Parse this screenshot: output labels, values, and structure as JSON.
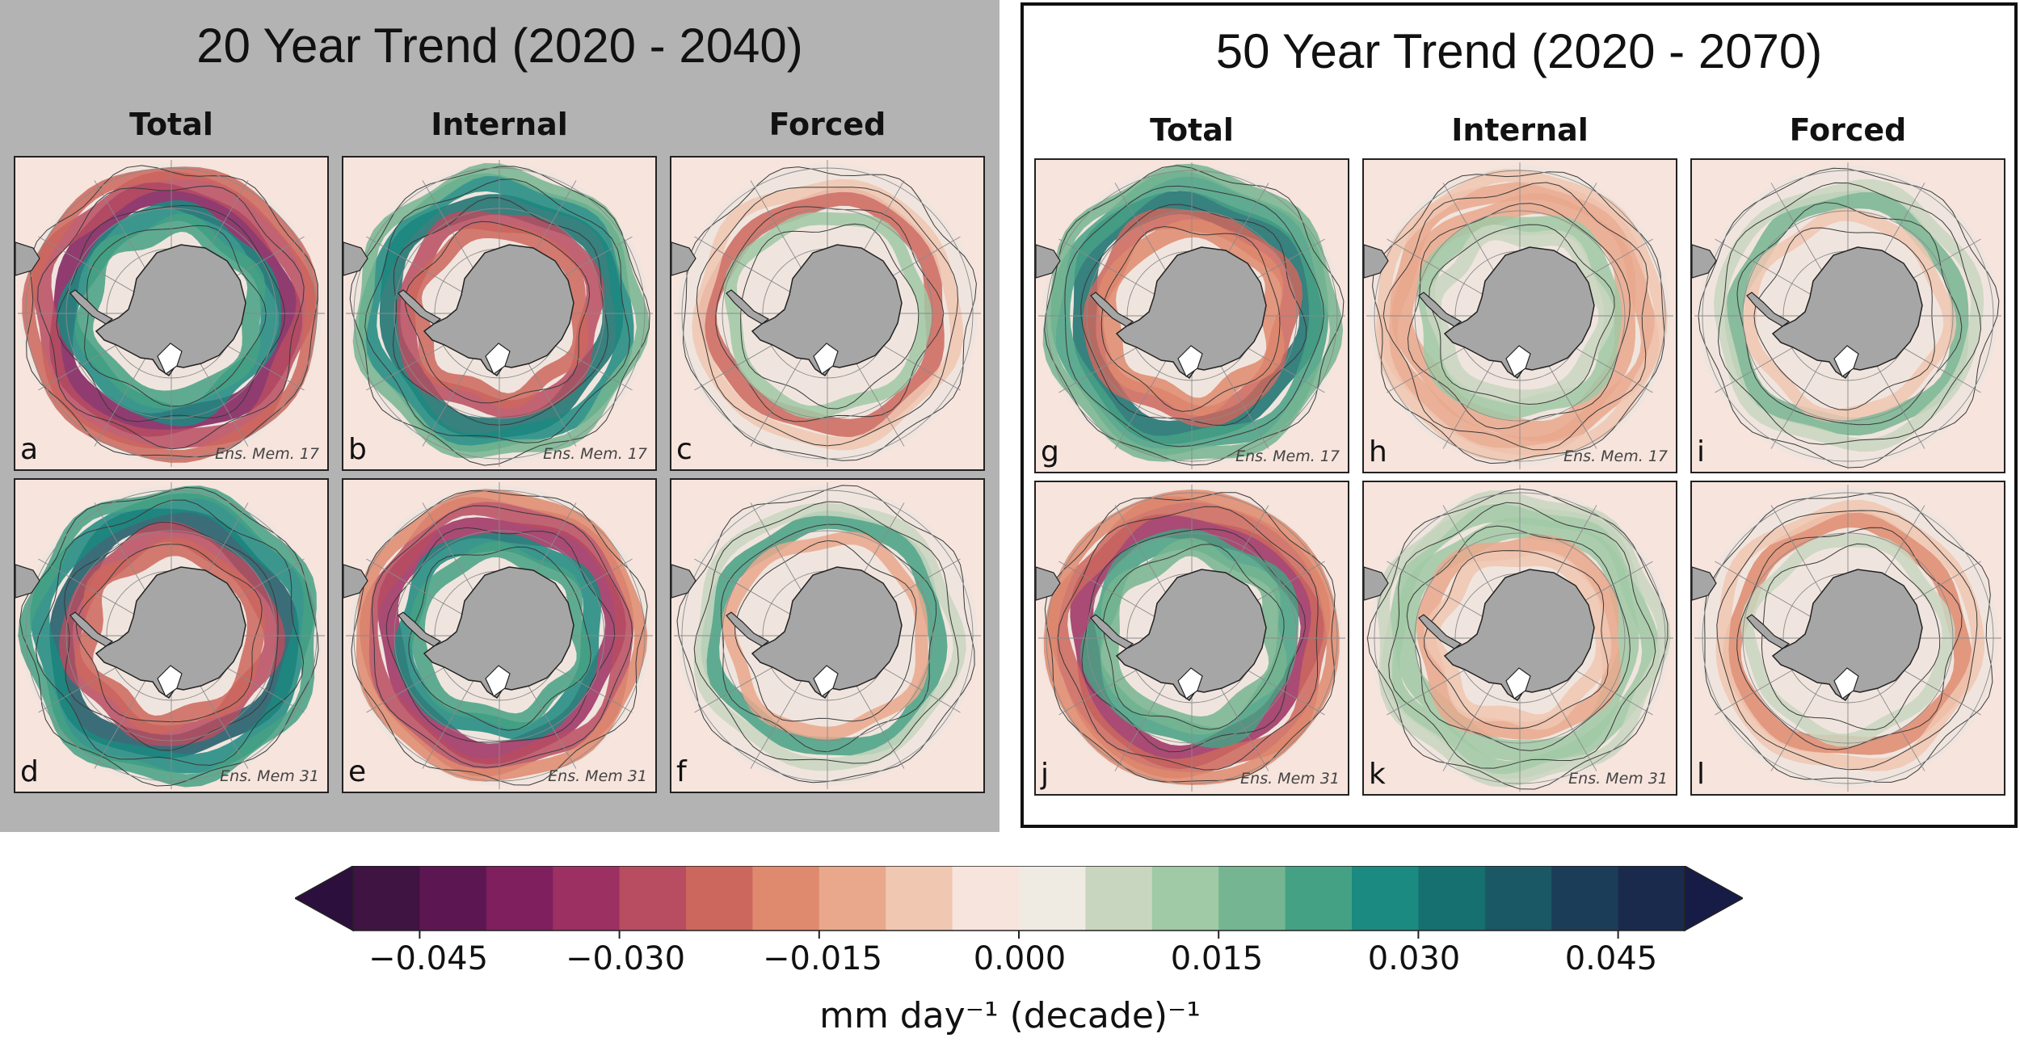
{
  "groups": [
    {
      "title": "20 Year Trend (2020 - 2040)",
      "columns": [
        "Total",
        "Internal",
        "Forced"
      ],
      "panels": [
        {
          "label": "a",
          "ens": "Ens. Mem. 17",
          "kind": "total"
        },
        {
          "label": "b",
          "ens": "Ens. Mem. 17",
          "kind": "internal"
        },
        {
          "label": "c",
          "ens": "",
          "kind": "forced"
        },
        {
          "label": "d",
          "ens": "Ens. Mem 31",
          "kind": "total"
        },
        {
          "label": "e",
          "ens": "Ens. Mem 31",
          "kind": "internal"
        },
        {
          "label": "f",
          "ens": "",
          "kind": "forced"
        }
      ]
    },
    {
      "title": "50 Year Trend (2020 - 2070)",
      "columns": [
        "Total",
        "Internal",
        "Forced"
      ],
      "panels": [
        {
          "label": "g",
          "ens": "Ens. Mem. 17",
          "kind": "total"
        },
        {
          "label": "h",
          "ens": "Ens. Mem. 17",
          "kind": "internal"
        },
        {
          "label": "i",
          "ens": "",
          "kind": "forced"
        },
        {
          "label": "j",
          "ens": "Ens. Mem 31",
          "kind": "total"
        },
        {
          "label": "k",
          "ens": "Ens. Mem 31",
          "kind": "internal"
        },
        {
          "label": "l",
          "ens": "",
          "kind": "forced"
        }
      ]
    }
  ],
  "colorbar": {
    "label": "mm day⁻¹ (decade)⁻¹",
    "range": [
      -0.05,
      0.05
    ],
    "step": 0.005,
    "ticks": [
      "−0.045",
      "−0.030",
      "−0.015",
      "0.000",
      "0.015",
      "0.030",
      "0.045"
    ],
    "tick_values": [
      -0.045,
      -0.03,
      -0.015,
      0.0,
      0.015,
      0.03,
      0.045
    ],
    "extend_low_color": "#2d0f3d",
    "extend_high_color": "#161c46",
    "colors": [
      "#3f1342",
      "#5c1753",
      "#7f1f5e",
      "#9c3062",
      "#b84c60",
      "#cc675d",
      "#df8a6f",
      "#e9a88c",
      "#f0c7b1",
      "#f7e4dd",
      "#efebe3",
      "#c9d6bf",
      "#a0c9a5",
      "#75b591",
      "#45a184",
      "#1b8a80",
      "#16706f",
      "#1b5866",
      "#1c3d58",
      "#1a2a4d"
    ]
  },
  "map_colors": {
    "ocean_neutral": "#f7e4dd",
    "antarctica": "#a6a6a6",
    "land_outside": "#a6a6a6",
    "grid": "#8a8a8a"
  }
}
